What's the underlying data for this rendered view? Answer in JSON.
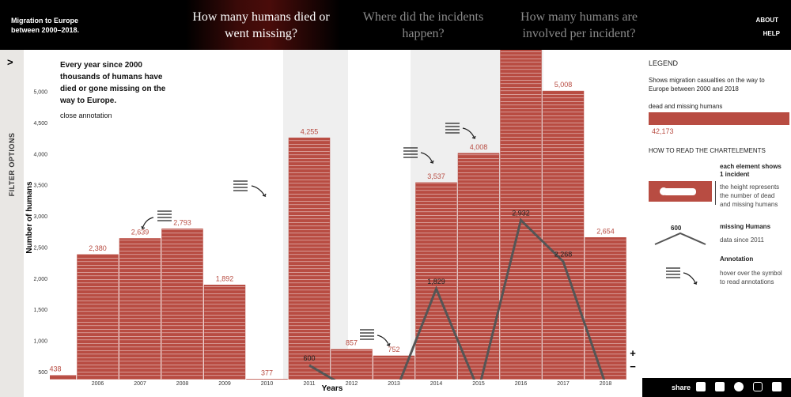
{
  "header": {
    "title": "Migration to Europe between 2000–2018.",
    "tabs": [
      "How many humans died or went missing?",
      "Where did the incidents happen?",
      "How many humans are involved per incident?"
    ],
    "links": [
      "ABOUT",
      "HELP"
    ]
  },
  "sidebar": {
    "label": "FILTER OPTIONS"
  },
  "annotation": {
    "text": "Every year since 2000 thousands of humans have died or gone missing on the way to Europe.",
    "close": "close annotation"
  },
  "chart_data": {
    "type": "bar",
    "xlabel": "Years",
    "ylabel": "Number of humans",
    "categories": [
      null,
      "2006",
      "2007",
      "2008",
      "2009",
      "2010",
      "2011",
      "2012",
      "2013",
      "2014",
      "2015",
      "2016",
      "2017",
      "2018"
    ],
    "series": [
      {
        "name": "dead and missing humans",
        "color": "#b84c42",
        "values": [
          438,
          2380,
          2639,
          2793,
          1892,
          377,
          4255,
          857,
          752,
          3537,
          4008,
          5700,
          5008,
          2654
        ],
        "value_labels": [
          "438",
          "2,380",
          "2,639",
          "2,793",
          "1,892",
          "377",
          "4,255",
          "857",
          "752",
          "3,537",
          "4,008",
          null,
          "5,008",
          "2,654"
        ]
      },
      {
        "name": "missing Humans",
        "type": "line",
        "color": "#555555",
        "values": [
          null,
          null,
          null,
          null,
          null,
          null,
          600,
          200,
          100,
          1829,
          200,
          2932,
          2268,
          300
        ],
        "value_labels": [
          null,
          null,
          null,
          null,
          null,
          null,
          "600",
          null,
          null,
          "1,829",
          null,
          "2,932",
          "2,268",
          null
        ]
      }
    ],
    "ylim": [
      370,
      5670
    ],
    "yticks": [
      500,
      {
        "value": 1000,
        "label": "1,000"
      },
      {
        "value": 1500,
        "label": "1,500"
      },
      {
        "value": 2000,
        "label": "2,000"
      },
      {
        "value": 2500,
        "label": "2,500"
      },
      {
        "value": 3000,
        "label": "3,000"
      },
      {
        "value": 3500,
        "label": "3,500"
      },
      {
        "value": 4000,
        "label": "4,000"
      },
      {
        "value": 4500,
        "label": "4,500"
      },
      {
        "value": 5000,
        "label": "5,000"
      }
    ]
  },
  "legend": {
    "title": "LEGEND",
    "description": "Shows migration casualties on the way to Europe between 2000 and 2018",
    "total": "42,173",
    "how_to_title": "HOW TO READ THE CHARTELEMENTS",
    "element_title": "each element shows 1 incident",
    "element_desc": "the height represents the number of dead and missing humans",
    "line_value": "600",
    "line_desc": "data since 2011",
    "annotation_title": "Annotation",
    "annotation_desc": "hover over the symbol to read annotations"
  },
  "footer": {
    "share": "share"
  }
}
